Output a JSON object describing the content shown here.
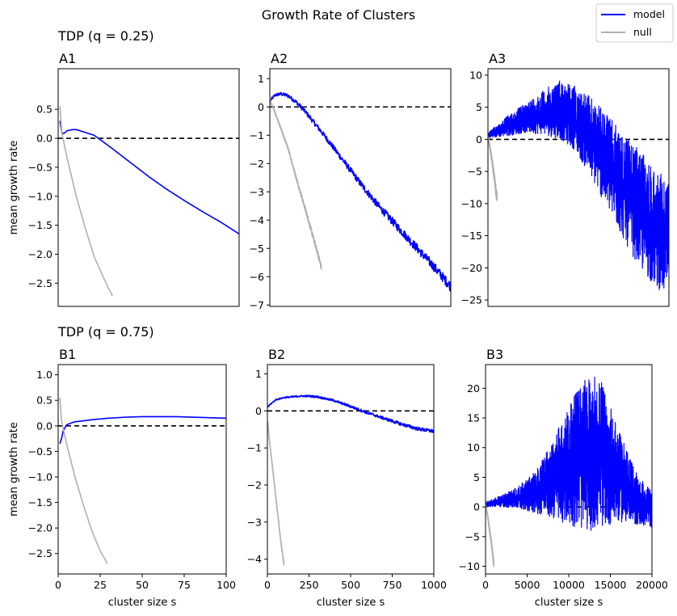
{
  "figure": {
    "title": "Growth Rate of Clusters",
    "row_titles": [
      "TDP (q = 0.25)",
      "TDP (q = 0.75)"
    ],
    "legend": [
      {
        "label": "model",
        "color": "#0000ff"
      },
      {
        "label": "null",
        "color": "#b0b0b0"
      }
    ],
    "zero_line_color": "#000000"
  },
  "chart_data": [
    {
      "type": "line",
      "panel": "A1",
      "title": "A1",
      "xlabel": "",
      "ylabel": "mean growth rate",
      "xlim": [
        0,
        100
      ],
      "ylim": [
        -2.9,
        1.2
      ],
      "x_ticks_shown": false,
      "yticks": [
        0.5,
        0.0,
        -0.5,
        -1.0,
        -1.5,
        -2.0,
        -2.5
      ],
      "ytick_labels": [
        "0.5",
        "0.0",
        "−0.5",
        "−1.0",
        "−1.5",
        "−2.0",
        "−2.5"
      ],
      "reference_line": 0,
      "series": [
        {
          "name": "model",
          "noise": 0,
          "x": [
            1,
            2,
            3,
            5,
            8,
            10,
            20,
            30,
            40,
            50,
            60,
            70,
            80,
            90,
            100
          ],
          "y": [
            0.3,
            0.1,
            0.08,
            0.13,
            0.15,
            0.15,
            0.05,
            -0.18,
            -0.42,
            -0.66,
            -0.88,
            -1.08,
            -1.27,
            -1.45,
            -1.65
          ]
        },
        {
          "name": "null",
          "noise": 0,
          "x": [
            1,
            2,
            3,
            5,
            10,
            15,
            20,
            25,
            28,
            30
          ],
          "y": [
            0.55,
            0.1,
            -0.05,
            -0.35,
            -1.0,
            -1.55,
            -2.05,
            -2.4,
            -2.6,
            -2.72
          ]
        }
      ]
    },
    {
      "type": "line",
      "panel": "A2",
      "title": "A2",
      "xlabel": "",
      "ylabel": "",
      "xlim": [
        0,
        1000
      ],
      "ylim": [
        -7.05,
        1.35
      ],
      "x_ticks_shown": false,
      "yticks": [
        1,
        0,
        -1,
        -2,
        -3,
        -4,
        -5,
        -6,
        -7
      ],
      "ytick_labels": [
        "1",
        "0",
        "−1",
        "−2",
        "−3",
        "−4",
        "−5",
        "−6",
        "−7"
      ],
      "reference_line": 0,
      "series": [
        {
          "name": "model",
          "noise": 0.18,
          "x": [
            5,
            30,
            60,
            100,
            150,
            200,
            300,
            400,
            500,
            600,
            700,
            800,
            900,
            1000
          ],
          "y": [
            0.25,
            0.42,
            0.46,
            0.4,
            0.15,
            -0.2,
            -1.0,
            -1.85,
            -2.7,
            -3.5,
            -4.2,
            -4.9,
            -5.6,
            -6.35
          ]
        },
        {
          "name": "null",
          "noise": 0.1,
          "x": [
            2,
            20,
            40,
            60,
            80,
            100,
            150,
            200,
            250,
            270,
            285
          ],
          "y": [
            0.2,
            -0.05,
            -0.4,
            -0.75,
            -1.1,
            -1.45,
            -2.6,
            -3.7,
            -4.85,
            -5.3,
            -5.7
          ]
        }
      ]
    },
    {
      "type": "line",
      "panel": "A3",
      "title": "A3",
      "xlabel": "",
      "ylabel": "",
      "xlim": [
        0,
        20000
      ],
      "ylim": [
        -26,
        11
      ],
      "x_ticks_shown": false,
      "yticks": [
        10,
        5,
        0,
        -5,
        -10,
        -15,
        -20,
        -25
      ],
      "ytick_labels": [
        "10",
        "5",
        "0",
        "−5",
        "−10",
        "−15",
        "−20",
        "−25"
      ],
      "reference_line": 0,
      "reference_line_xlim": [
        0,
        20000
      ],
      "series": [
        {
          "name": "model",
          "noise": 0,
          "x": [
            0,
            2000,
            4000,
            6000,
            8000,
            9500,
            11000,
            12500,
            14000,
            15500,
            17000,
            18500,
            20000
          ],
          "y": [
            0.5,
            1.6,
            2.5,
            3.5,
            4.2,
            3.6,
            2.0,
            -0.5,
            -3.5,
            -6.5,
            -9.5,
            -12,
            -15.5
          ],
          "upper": [
            1.0,
            3.5,
            5.5,
            7.5,
            9.4,
            8.5,
            7.0,
            5.0,
            2.5,
            0.0,
            -2.0,
            -4.5,
            -6.5
          ],
          "lower": [
            0.2,
            0.5,
            1.0,
            0.8,
            0.0,
            -1.5,
            -5.0,
            -9.0,
            -13.0,
            -17.0,
            -20.5,
            -23.0,
            -24.5
          ]
        },
        {
          "name": "null",
          "noise": 0.8,
          "x": [
            0,
            250,
            500,
            750,
            900,
            1000
          ],
          "y": [
            0.3,
            -1.5,
            -3.8,
            -6.5,
            -8.2,
            -9.2
          ]
        }
      ]
    },
    {
      "type": "line",
      "panel": "B1",
      "title": "B1",
      "xlabel": "cluster size s",
      "ylabel": "mean growth rate",
      "xlim": [
        0,
        100
      ],
      "ylim": [
        -2.9,
        1.2
      ],
      "x_ticks_shown": true,
      "xticks": [
        0,
        25,
        50,
        75,
        100
      ],
      "xtick_labels": [
        "0",
        "25",
        "50",
        "75",
        "100"
      ],
      "yticks": [
        1.0,
        0.5,
        0.0,
        -0.5,
        -1.0,
        -1.5,
        -2.0,
        -2.5
      ],
      "ytick_labels": [
        "1.0",
        "0.5",
        "0.0",
        "−0.5",
        "−1.0",
        "−1.5",
        "−2.0",
        "−2.5"
      ],
      "reference_line": 0,
      "series": [
        {
          "name": "model",
          "noise": 0,
          "x": [
            1,
            2,
            3,
            5,
            8,
            10,
            20,
            30,
            40,
            50,
            60,
            70,
            80,
            90,
            100
          ],
          "y": [
            -0.35,
            -0.25,
            -0.1,
            0.02,
            0.06,
            0.08,
            0.12,
            0.15,
            0.17,
            0.18,
            0.18,
            0.18,
            0.17,
            0.16,
            0.15
          ]
        },
        {
          "name": "null",
          "noise": 0,
          "x": [
            1,
            2,
            3,
            5,
            10,
            15,
            20,
            25,
            28,
            29
          ],
          "y": [
            0.55,
            0.1,
            -0.05,
            -0.35,
            -1.0,
            -1.55,
            -2.05,
            -2.45,
            -2.62,
            -2.7
          ]
        }
      ]
    },
    {
      "type": "line",
      "panel": "B2",
      "title": "B2",
      "xlabel": "cluster size s",
      "ylabel": "",
      "xlim": [
        0,
        1000
      ],
      "ylim": [
        -4.4,
        1.25
      ],
      "x_ticks_shown": true,
      "xticks": [
        0,
        250,
        500,
        750,
        1000
      ],
      "xtick_labels": [
        "0",
        "250",
        "500",
        "750",
        "1000"
      ],
      "yticks": [
        1,
        0,
        -1,
        -2,
        -3,
        -4
      ],
      "ytick_labels": [
        "1",
        "0",
        "−1",
        "−2",
        "−3",
        "−4"
      ],
      "reference_line": 0,
      "series": [
        {
          "name": "model",
          "noise": 0.05,
          "x": [
            2,
            10,
            50,
            100,
            200,
            250,
            300,
            400,
            500,
            600,
            700,
            800,
            900,
            1000
          ],
          "y": [
            0.1,
            0.15,
            0.3,
            0.36,
            0.4,
            0.4,
            0.38,
            0.28,
            0.12,
            -0.05,
            -0.2,
            -0.35,
            -0.48,
            -0.55
          ]
        },
        {
          "name": "null",
          "noise": 0.04,
          "x": [
            2,
            10,
            20,
            40,
            60,
            80,
            100
          ],
          "y": [
            -0.3,
            -0.7,
            -1.1,
            -1.9,
            -2.7,
            -3.5,
            -4.15
          ]
        }
      ]
    },
    {
      "type": "line",
      "panel": "B3",
      "title": "B3",
      "xlabel": "cluster size s",
      "ylabel": "",
      "xlim": [
        0,
        20000
      ],
      "ylim": [
        -11.3,
        24
      ],
      "x_ticks_shown": true,
      "xticks": [
        0,
        5000,
        10000,
        15000,
        20000
      ],
      "xtick_labels": [
        "0",
        "5000",
        "10000",
        "15000",
        "20000"
      ],
      "yticks": [
        20,
        15,
        10,
        5,
        0,
        -5,
        -10
      ],
      "ytick_labels": [
        "20",
        "15",
        "10",
        "5",
        "0",
        "−5",
        "−10"
      ],
      "reference_line": 0,
      "reference_line_xlim": [
        10000,
        15000
      ],
      "series": [
        {
          "name": "model",
          "noise": 0,
          "x": [
            0,
            2000,
            4000,
            6000,
            8000,
            10000,
            11000,
            12000,
            13000,
            14000,
            15000,
            16000,
            18000,
            20000
          ],
          "y": [
            0.3,
            1.0,
            1.5,
            2.5,
            3.5,
            5.0,
            6.0,
            7.0,
            7.5,
            7.0,
            6.0,
            5.0,
            2.5,
            0.5
          ],
          "upper": [
            0.8,
            2.0,
            3.5,
            6.0,
            11.0,
            17.0,
            20.0,
            21.5,
            22.3,
            21.0,
            17.0,
            13.0,
            6.0,
            2.5
          ],
          "lower": [
            0.0,
            0.0,
            -0.3,
            -1.0,
            -2.0,
            -3.0,
            -3.5,
            -4.0,
            -4.0,
            -3.5,
            -3.0,
            -2.5,
            -3.0,
            -3.5
          ]
        },
        {
          "name": "null",
          "noise": 0.6,
          "x": [
            0,
            250,
            500,
            750,
            900,
            1000
          ],
          "y": [
            0.3,
            -1.5,
            -4.0,
            -6.5,
            -8.5,
            -9.7
          ]
        }
      ]
    }
  ]
}
